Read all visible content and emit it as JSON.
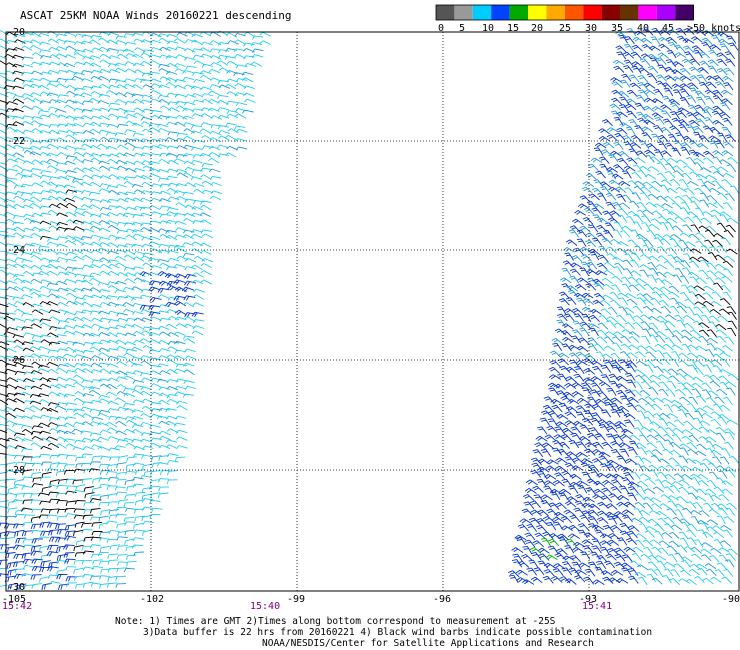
{
  "header": {
    "title": "ASCAT 25KM NOAA Winds 20160221 descending"
  },
  "legend": {
    "colors": [
      "#555555",
      "#999999",
      "#00ccff",
      "#0044ff",
      "#00aa00",
      "#ffff00",
      "#ffaa00",
      "#ff5500",
      "#ff0000",
      "#880000",
      "#663300",
      "#ff00ff",
      "#aa00ff",
      "#440066"
    ],
    "labels": [
      "0",
      "5",
      "10",
      "15",
      "20",
      "25",
      "30",
      "35",
      "40",
      "45",
      ">50 knots"
    ]
  },
  "map": {
    "lat_labels": [
      "-20",
      "-22",
      "-24",
      "-26",
      "-28",
      "-30"
    ],
    "lon_labels": [
      "-105",
      "-102",
      "-99",
      "-96",
      "-93",
      "-90"
    ],
    "time_labels": [
      "15:42",
      "15:40",
      "15:41"
    ],
    "barb_colors": {
      "light": "#22ccee",
      "mid": "#2299dd",
      "strong": "#0033cc",
      "contam": "#000000",
      "green": "#00aa00"
    }
  },
  "notes": {
    "line1": "Note: 1) Times are GMT 2)Times along bottom correspond to measurement at -25S",
    "line2": "3)Data buffer is 22 hrs from 20160221 4) Black wind barbs indicate possible contamination",
    "line3": "NOAA/NESDIS/Center for Satellite Applications and Research"
  }
}
